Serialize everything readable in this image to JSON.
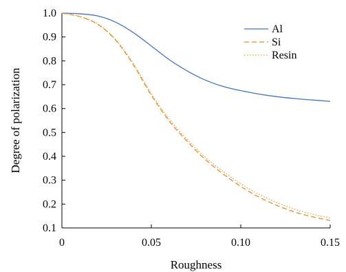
{
  "chart_data": {
    "type": "line",
    "title": "",
    "xlabel": "Roughness",
    "ylabel": "Degree of polarization",
    "xlim": [
      0,
      0.15
    ],
    "ylim": [
      0.1,
      1.0
    ],
    "xticks": [
      0,
      0.05,
      0.1,
      0.15
    ],
    "xtick_labels": [
      "0",
      "0.05",
      "0.10",
      "0.15"
    ],
    "yticks": [
      0.1,
      0.2,
      0.3,
      0.4,
      0.5,
      0.6,
      0.7,
      0.8,
      0.9,
      1.0
    ],
    "ytick_labels": [
      "0.1",
      "0.2",
      "0.3",
      "0.4",
      "0.5",
      "0.6",
      "0.7",
      "0.8",
      "0.9",
      "1.0"
    ],
    "grid": false,
    "legend_position": "top-right",
    "x": [
      0,
      0.01,
      0.02,
      0.03,
      0.04,
      0.05,
      0.06,
      0.07,
      0.08,
      0.09,
      0.1,
      0.11,
      0.12,
      0.13,
      0.14,
      0.15
    ],
    "series": [
      {
        "name": "Al",
        "color": "#4472C4",
        "dash": "solid",
        "values": [
          1.0,
          0.997,
          0.988,
          0.962,
          0.918,
          0.862,
          0.805,
          0.758,
          0.72,
          0.693,
          0.675,
          0.661,
          0.65,
          0.642,
          0.636,
          0.63
        ]
      },
      {
        "name": "Si",
        "color": "#E58A2C",
        "dash": "dashed",
        "values": [
          1.0,
          0.985,
          0.953,
          0.887,
          0.783,
          0.656,
          0.548,
          0.463,
          0.388,
          0.327,
          0.274,
          0.23,
          0.195,
          0.167,
          0.147,
          0.131
        ]
      },
      {
        "name": "Resin",
        "color": "#E5A02C",
        "dash": "dotted",
        "values": [
          1.0,
          0.986,
          0.955,
          0.89,
          0.788,
          0.662,
          0.556,
          0.471,
          0.397,
          0.337,
          0.285,
          0.242,
          0.207,
          0.179,
          0.158,
          0.142
        ]
      }
    ]
  }
}
